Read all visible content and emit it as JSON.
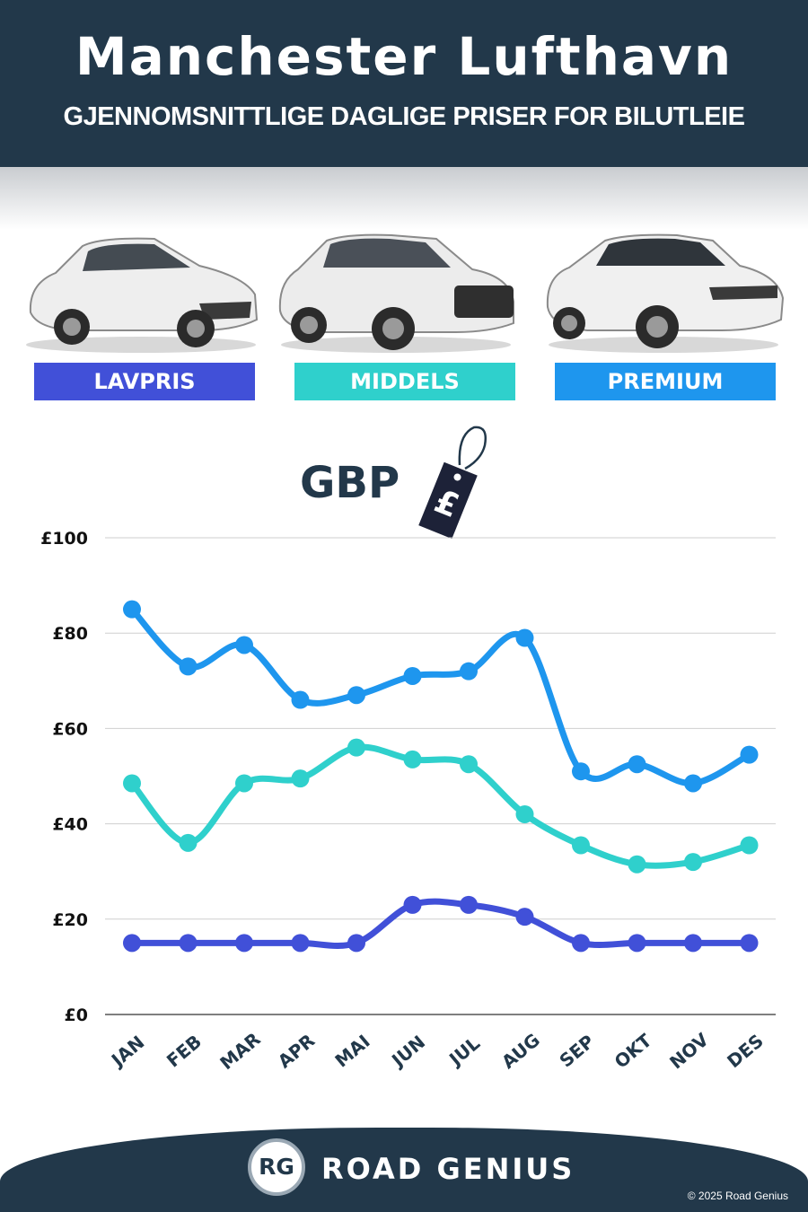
{
  "header": {
    "title": "Manchester Lufthavn",
    "subtitle": "GJENNOMSNITTLIGE DAGLIGE PRISER FOR BILUTLEIE"
  },
  "categories": [
    {
      "label": "LAVPRIS",
      "color": "#4150d8"
    },
    {
      "label": "MIDDELS",
      "color": "#2fd0cc"
    },
    {
      "label": "PREMIUM",
      "color": "#1e96ee"
    }
  ],
  "currency": {
    "label": "GBP",
    "tag_symbol": "£"
  },
  "chart_data": {
    "type": "line",
    "categories": [
      "JAN",
      "FEB",
      "MAR",
      "APR",
      "MAI",
      "JUN",
      "JUL",
      "AUG",
      "SEP",
      "OKT",
      "NOV",
      "DES"
    ],
    "series": [
      {
        "name": "PREMIUM",
        "color": "#1e96ee",
        "values": [
          85,
          73,
          77.5,
          66,
          67,
          71,
          72,
          79,
          51,
          52.5,
          48.5,
          54.5
        ]
      },
      {
        "name": "MIDDELS",
        "color": "#2fd0cc",
        "values": [
          48.5,
          36,
          48.5,
          49.5,
          56,
          53.5,
          52.5,
          42,
          35.5,
          31.5,
          32,
          35.5
        ]
      },
      {
        "name": "LAVPRIS",
        "color": "#4150d8",
        "values": [
          15,
          15,
          15,
          15,
          15,
          23,
          23,
          20.5,
          15,
          15,
          15,
          15
        ]
      }
    ],
    "y_ticks": [
      "£0",
      "£20",
      "£40",
      "£60",
      "£80",
      "£100"
    ],
    "ylim": [
      0,
      100
    ],
    "grid": true
  },
  "footer": {
    "logo_initials": "RG",
    "brand": "ROAD GENIUS",
    "copyright": "© 2025 Road Genius"
  }
}
